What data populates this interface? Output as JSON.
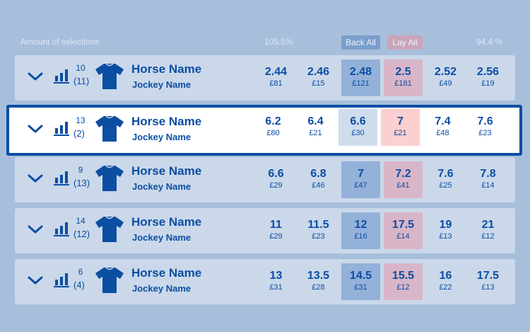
{
  "header": {
    "amount_label": "Amount of selections",
    "back_pct": "105.5%",
    "back_all": "Back All",
    "lay_all": "Lay All",
    "lay_pct": "94.4 %"
  },
  "runners": [
    {
      "draw": "10",
      "stall": "(11)",
      "horse": "Horse Name",
      "jockey": "Jockey Name",
      "prices": [
        [
          "2.44",
          "£81"
        ],
        [
          "2.46",
          "£15"
        ],
        [
          "2.48",
          "£121"
        ],
        [
          "2.5",
          "£181"
        ],
        [
          "2.52",
          "£49"
        ],
        [
          "2.56",
          "£19"
        ]
      ]
    },
    {
      "draw": "13",
      "stall": "(2)",
      "horse": "Horse Name",
      "jockey": "Jockey Name",
      "prices": [
        [
          "6.2",
          "£80"
        ],
        [
          "6.4",
          "£21"
        ],
        [
          "6.6",
          "£30"
        ],
        [
          "7",
          "£21"
        ],
        [
          "7.4",
          "£48"
        ],
        [
          "7.6",
          "£23"
        ]
      ]
    },
    {
      "draw": "9",
      "stall": "(13)",
      "horse": "Horse Name",
      "jockey": "Jockey Name",
      "prices": [
        [
          "6.6",
          "£29"
        ],
        [
          "6.8",
          "£46"
        ],
        [
          "7",
          "£47"
        ],
        [
          "7.2",
          "£41"
        ],
        [
          "7.6",
          "£25"
        ],
        [
          "7.8",
          "£14"
        ]
      ]
    },
    {
      "draw": "14",
      "stall": "(12)",
      "horse": "Horse Name",
      "jockey": "Jockey Name",
      "prices": [
        [
          "11",
          "£29"
        ],
        [
          "11.5",
          "£23"
        ],
        [
          "12",
          "£16"
        ],
        [
          "17.5",
          "£14"
        ],
        [
          "19",
          "£13"
        ],
        [
          "21",
          "£12"
        ]
      ]
    },
    {
      "draw": "6",
      "stall": "(4)",
      "horse": "Horse Name",
      "jockey": "Jockey Name",
      "prices": [
        [
          "13",
          "£31"
        ],
        [
          "13.5",
          "£28"
        ],
        [
          "14.5",
          "£31"
        ],
        [
          "15.5",
          "£12"
        ],
        [
          "16",
          "£22"
        ],
        [
          "17.5",
          "£13"
        ]
      ]
    }
  ],
  "icons": {
    "expand": "chevron-down-icon",
    "form": "bar-chart-icon",
    "silk": "jockey-shirt-icon"
  },
  "colors": {
    "accent": "#0b4ea2",
    "back": "#93b1d9",
    "lay": "#d9b5c8",
    "selected": "#ffffff"
  }
}
